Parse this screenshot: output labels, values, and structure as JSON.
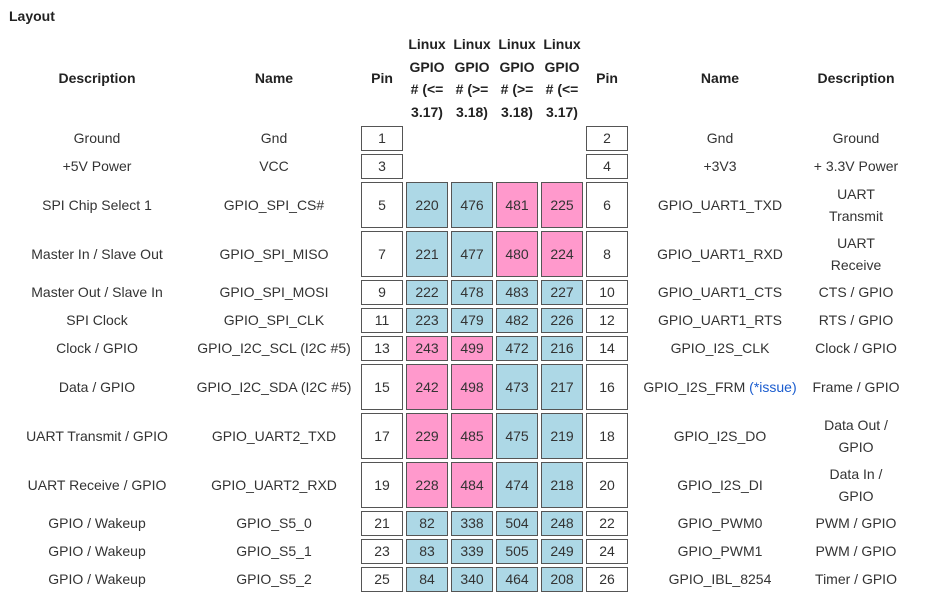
{
  "title": "Layout",
  "headers": {
    "description": "Description",
    "name": "Name",
    "pin": "Pin",
    "gpio_a": "Linux GPIO # (<= 3.17)",
    "gpio_b": "Linux GPIO # (>= 3.18)",
    "gpio_c": "Linux GPIO # (>= 3.18)",
    "gpio_d": "Linux GPIO # (<= 3.17)",
    "pin_r": "Pin",
    "name_r": "Name",
    "description_r": "Description"
  },
  "colors": {
    "blue": "#add8e6",
    "pink": "#ff99cc",
    "link": "#1a5ccf"
  },
  "rows": [
    {
      "ld": "Ground",
      "ln": "Gnd",
      "lp": "1",
      "rp": "2",
      "rn": "Gnd",
      "rd": "Ground",
      "g": []
    },
    {
      "ld": "+5V Power",
      "ln": "VCC",
      "lp": "3",
      "rp": "4",
      "rn": "+3V3",
      "rd": "+ 3.3V Power",
      "g": []
    },
    {
      "ld": "SPI Chip Select 1",
      "ln": "GPIO_SPI_CS#",
      "lp": "5",
      "rp": "6",
      "rn": "GPIO_UART1_TXD",
      "rd": "UART Transmit",
      "tall": true,
      "g": [
        {
          "v": "220",
          "c": "blue"
        },
        {
          "v": "476",
          "c": "blue"
        },
        {
          "v": "481",
          "c": "pink"
        },
        {
          "v": "225",
          "c": "pink"
        }
      ]
    },
    {
      "ld": "Master In / Slave Out",
      "ln": "GPIO_SPI_MISO",
      "lp": "7",
      "rp": "8",
      "rn": "GPIO_UART1_RXD",
      "rd": "UART Receive",
      "tall": true,
      "g": [
        {
          "v": "221",
          "c": "blue"
        },
        {
          "v": "477",
          "c": "blue"
        },
        {
          "v": "480",
          "c": "pink"
        },
        {
          "v": "224",
          "c": "pink"
        }
      ]
    },
    {
      "ld": "Master Out / Slave In",
      "ln": "GPIO_SPI_MOSI",
      "lp": "9",
      "rp": "10",
      "rn": "GPIO_UART1_CTS",
      "rd": "CTS / GPIO",
      "g": [
        {
          "v": "222",
          "c": "blue"
        },
        {
          "v": "478",
          "c": "blue"
        },
        {
          "v": "483",
          "c": "blue"
        },
        {
          "v": "227",
          "c": "blue"
        }
      ]
    },
    {
      "ld": "SPI Clock",
      "ln": "GPIO_SPI_CLK",
      "lp": "11",
      "rp": "12",
      "rn": "GPIO_UART1_RTS",
      "rd": "RTS / GPIO",
      "g": [
        {
          "v": "223",
          "c": "blue"
        },
        {
          "v": "479",
          "c": "blue"
        },
        {
          "v": "482",
          "c": "blue"
        },
        {
          "v": "226",
          "c": "blue"
        }
      ]
    },
    {
      "ld": "Clock / GPIO",
      "ln": "GPIO_I2C_SCL (I2C #5)",
      "lp": "13",
      "rp": "14",
      "rn": "GPIO_I2S_CLK",
      "rd": "Clock / GPIO",
      "g": [
        {
          "v": "243",
          "c": "pink"
        },
        {
          "v": "499",
          "c": "pink"
        },
        {
          "v": "472",
          "c": "blue"
        },
        {
          "v": "216",
          "c": "blue"
        }
      ]
    },
    {
      "ld": "Data / GPIO",
      "ln": "GPIO_I2C_SDA (I2C #5)",
      "lp": "15",
      "rp": "16",
      "rn": "GPIO_I2S_FRM",
      "rn_link": "(*issue)",
      "rd": "Frame / GPIO",
      "tall": true,
      "g": [
        {
          "v": "242",
          "c": "pink"
        },
        {
          "v": "498",
          "c": "pink"
        },
        {
          "v": "473",
          "c": "blue"
        },
        {
          "v": "217",
          "c": "blue"
        }
      ]
    },
    {
      "ld": "UART Transmit / GPIO",
      "ln": "GPIO_UART2_TXD",
      "lp": "17",
      "rp": "18",
      "rn": "GPIO_I2S_DO",
      "rd": "Data Out / GPIO",
      "tall": true,
      "g": [
        {
          "v": "229",
          "c": "pink"
        },
        {
          "v": "485",
          "c": "pink"
        },
        {
          "v": "475",
          "c": "blue"
        },
        {
          "v": "219",
          "c": "blue"
        }
      ]
    },
    {
      "ld": "UART Receive / GPIO",
      "ln": "GPIO_UART2_RXD",
      "lp": "19",
      "rp": "20",
      "rn": "GPIO_I2S_DI",
      "rd": "Data In / GPIO",
      "tall": true,
      "g": [
        {
          "v": "228",
          "c": "pink"
        },
        {
          "v": "484",
          "c": "pink"
        },
        {
          "v": "474",
          "c": "blue"
        },
        {
          "v": "218",
          "c": "blue"
        }
      ]
    },
    {
      "ld": "GPIO / Wakeup",
      "ln": "GPIO_S5_0",
      "lp": "21",
      "rp": "22",
      "rn": "GPIO_PWM0",
      "rd": "PWM / GPIO",
      "g": [
        {
          "v": "82",
          "c": "blue"
        },
        {
          "v": "338",
          "c": "blue"
        },
        {
          "v": "504",
          "c": "blue"
        },
        {
          "v": "248",
          "c": "blue"
        }
      ]
    },
    {
      "ld": "GPIO / Wakeup",
      "ln": "GPIO_S5_1",
      "lp": "23",
      "rp": "24",
      "rn": "GPIO_PWM1",
      "rd": "PWM / GPIO",
      "g": [
        {
          "v": "83",
          "c": "blue"
        },
        {
          "v": "339",
          "c": "blue"
        },
        {
          "v": "505",
          "c": "blue"
        },
        {
          "v": "249",
          "c": "blue"
        }
      ]
    },
    {
      "ld": "GPIO / Wakeup",
      "ln": "GPIO_S5_2",
      "lp": "25",
      "rp": "26",
      "rn": "GPIO_IBL_8254",
      "rd": "Timer / GPIO",
      "g": [
        {
          "v": "84",
          "c": "blue"
        },
        {
          "v": "340",
          "c": "blue"
        },
        {
          "v": "464",
          "c": "blue"
        },
        {
          "v": "208",
          "c": "blue"
        }
      ]
    }
  ]
}
